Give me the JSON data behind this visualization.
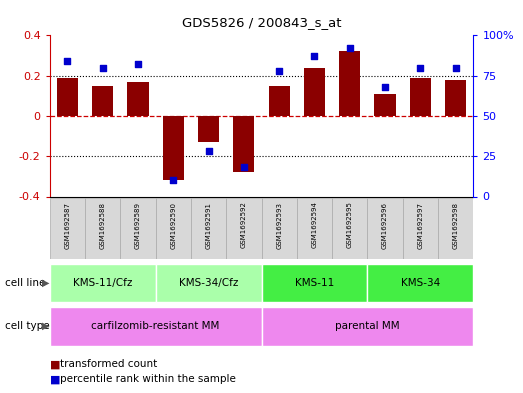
{
  "title": "GDS5826 / 200843_s_at",
  "samples": [
    "GSM1692587",
    "GSM1692588",
    "GSM1692589",
    "GSM1692590",
    "GSM1692591",
    "GSM1692592",
    "GSM1692593",
    "GSM1692594",
    "GSM1692595",
    "GSM1692596",
    "GSM1692597",
    "GSM1692598"
  ],
  "transformed_count": [
    0.19,
    0.15,
    0.17,
    -0.32,
    -0.13,
    -0.28,
    0.15,
    0.24,
    0.32,
    0.11,
    0.19,
    0.18
  ],
  "percentile_rank": [
    84,
    80,
    82,
    10,
    28,
    18,
    78,
    87,
    92,
    68,
    80,
    80
  ],
  "ylim_left": [
    -0.4,
    0.4
  ],
  "ylim_right": [
    0,
    100
  ],
  "yticks_left": [
    -0.4,
    -0.2,
    0,
    0.2,
    0.4
  ],
  "yticks_right": [
    0,
    25,
    50,
    75,
    100
  ],
  "bar_color": "#8B0000",
  "dot_color": "#0000CD",
  "hline_color": "#cc0000",
  "dotted_color": "black",
  "cell_line_groups": [
    {
      "label": "KMS-11/Cfz",
      "start": 0,
      "end": 2,
      "color": "#aaffaa"
    },
    {
      "label": "KMS-34/Cfz",
      "start": 3,
      "end": 5,
      "color": "#aaffaa"
    },
    {
      "label": "KMS-11",
      "start": 6,
      "end": 8,
      "color": "#44ee44"
    },
    {
      "label": "KMS-34",
      "start": 9,
      "end": 11,
      "color": "#44ee44"
    }
  ],
  "cell_type_groups": [
    {
      "label": "carfilzomib-resistant MM",
      "start": 0,
      "end": 5,
      "color": "#ee88ee"
    },
    {
      "label": "parental MM",
      "start": 6,
      "end": 11,
      "color": "#ee88ee"
    }
  ],
  "legend_items": [
    {
      "label": "transformed count",
      "color": "#8B0000"
    },
    {
      "label": "percentile rank within the sample",
      "color": "#0000CD"
    }
  ],
  "cell_line_label": "cell line",
  "cell_type_label": "cell type",
  "label_box_color": "#d8d8d8",
  "label_box_edge": "#aaaaaa"
}
